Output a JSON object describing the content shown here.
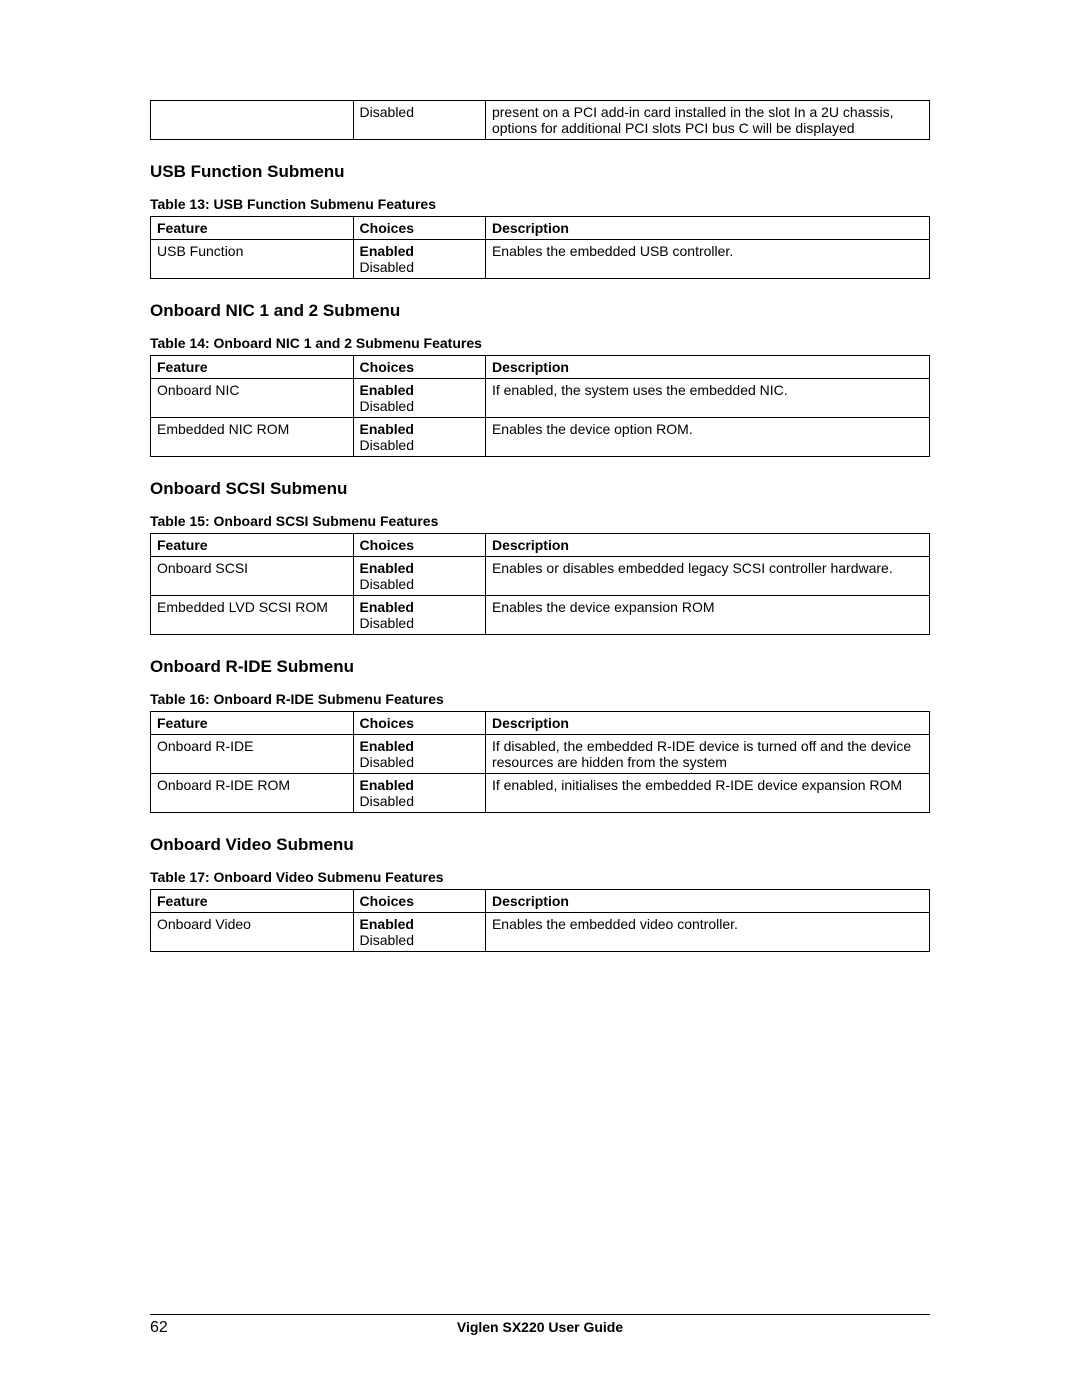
{
  "orphan_table": {
    "row": {
      "feature": "",
      "choice": "Disabled",
      "description": "present on a PCI add-in card installed in the slot In a 2U chassis, options for additional PCI slots PCI bus C will be displayed"
    }
  },
  "headers": {
    "feature": "Feature",
    "choices": "Choices",
    "description": "Description"
  },
  "sections": [
    {
      "heading": "USB Function Submenu",
      "caption": "Table 13: USB Function Submenu Features",
      "rows": [
        {
          "feature": "USB Function",
          "choice_bold": "Enabled",
          "choice_plain": "Disabled",
          "description": "Enables the embedded USB controller."
        }
      ]
    },
    {
      "heading": "Onboard NIC 1 and 2 Submenu",
      "caption": "Table 14: Onboard NIC 1 and 2 Submenu Features",
      "rows": [
        {
          "feature": "Onboard NIC",
          "choice_bold": "Enabled",
          "choice_plain": "Disabled",
          "description": "If enabled, the system uses the embedded NIC."
        },
        {
          "feature": "Embedded NIC ROM",
          "choice_bold": "Enabled",
          "choice_plain": "Disabled",
          "description": "Enables the device option ROM."
        }
      ]
    },
    {
      "heading": "Onboard SCSI Submenu",
      "caption": "Table 15: Onboard SCSI Submenu Features",
      "rows": [
        {
          "feature": "Onboard SCSI",
          "choice_bold": "Enabled",
          "choice_plain": "Disabled",
          "description": "Enables or disables embedded legacy SCSI controller hardware."
        },
        {
          "feature": "Embedded LVD SCSI ROM",
          "choice_bold": "Enabled",
          "choice_plain": "Disabled",
          "description": "Enables the device expansion ROM"
        }
      ]
    },
    {
      "heading": "Onboard R-IDE Submenu",
      "caption": "Table 16: Onboard R-IDE Submenu Features",
      "rows": [
        {
          "feature": "Onboard R-IDE",
          "choice_bold": "Enabled",
          "choice_plain": "Disabled",
          "description": "If disabled, the embedded R-IDE device is turned off and the device resources are hidden from the system"
        },
        {
          "feature": "Onboard R-IDE ROM",
          "choice_bold": "Enabled",
          "choice_plain": "Disabled",
          "description": "If enabled, initialises the embedded R-IDE device expansion ROM"
        }
      ]
    },
    {
      "heading": "Onboard Video Submenu",
      "caption": "Table 17: Onboard Video Submenu Features",
      "rows": [
        {
          "feature": "Onboard Video",
          "choice_bold": "Enabled",
          "choice_plain": "Disabled",
          "description": "Enables the embedded video controller."
        }
      ]
    }
  ],
  "footer": {
    "page": "62",
    "title": "Viglen SX220 User Guide"
  }
}
